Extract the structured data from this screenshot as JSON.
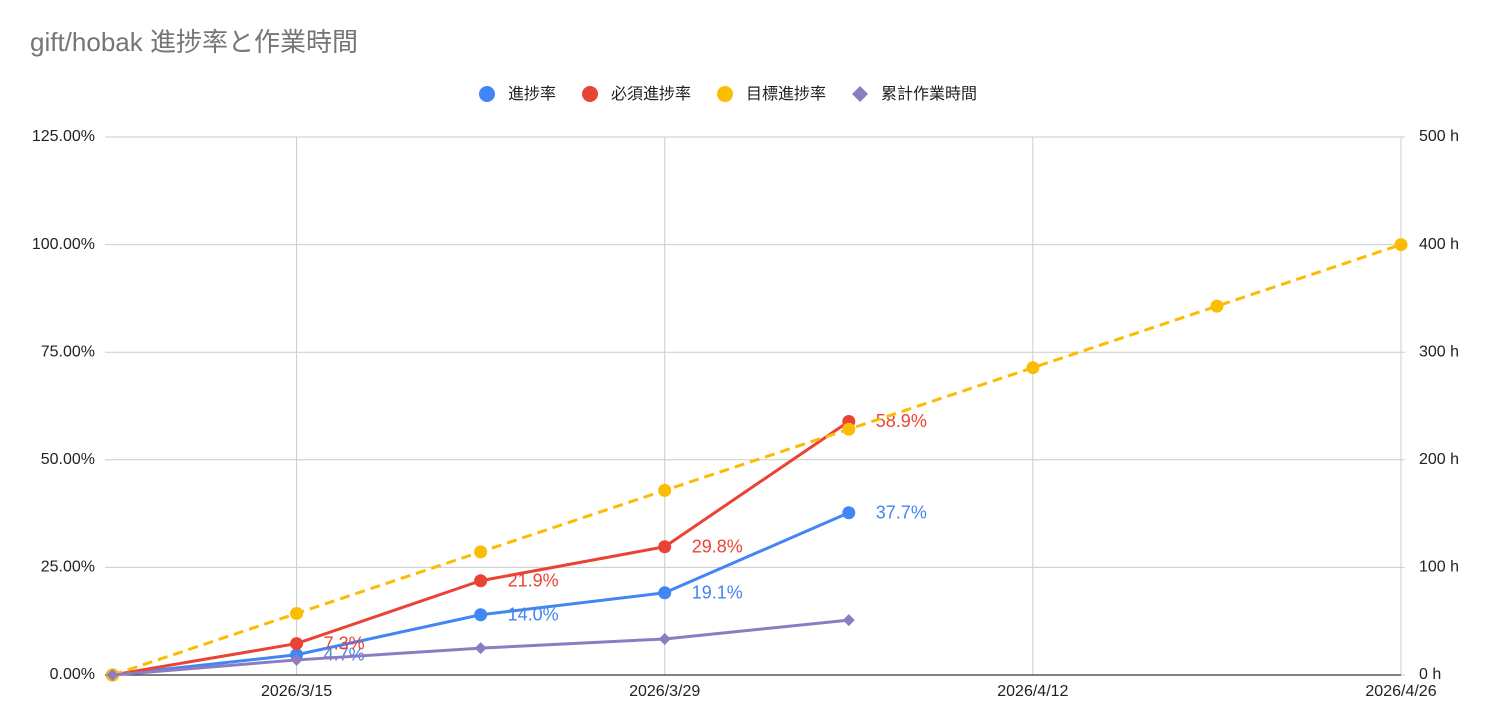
{
  "chart_data": {
    "type": "line",
    "title": "gift/hobak 進捗率と作業時間",
    "x": [
      "2026/3/8",
      "2026/3/15",
      "2026/3/22",
      "2026/3/29",
      "2026/4/5",
      "2026/4/12",
      "2026/4/19",
      "2026/4/26"
    ],
    "xlim": [
      "2026/3/8",
      "2026/4/26"
    ],
    "xticks": [
      "2026/3/15",
      "2026/3/29",
      "2026/4/12",
      "2026/4/26"
    ],
    "ylim": [
      0,
      125
    ],
    "yticks": [
      {
        "value": 0,
        "label": "0.00%"
      },
      {
        "value": 25,
        "label": "25.00%"
      },
      {
        "value": 50,
        "label": "50.00%"
      },
      {
        "value": 75,
        "label": "75.00%"
      },
      {
        "value": 100,
        "label": "100.00%"
      },
      {
        "value": 125,
        "label": "125.00%"
      }
    ],
    "y2lim": [
      0,
      500
    ],
    "y2ticks": [
      {
        "value": 0,
        "label": "0 h"
      },
      {
        "value": 100,
        "label": "100 h"
      },
      {
        "value": 200,
        "label": "200 h"
      },
      {
        "value": 300,
        "label": "300 h"
      },
      {
        "value": 400,
        "label": "400 h"
      },
      {
        "value": 500,
        "label": "500 h"
      }
    ],
    "grid": true,
    "legend": "top",
    "series": [
      {
        "name": "進捗率",
        "color": "#4285f4",
        "marker": "circle",
        "values": [
          0,
          4.7,
          14.0,
          19.1,
          37.7,
          null,
          null,
          null
        ],
        "value_labels": [
          null,
          "4.7%",
          "14.0%",
          "19.1%",
          "37.7%",
          null,
          null,
          null
        ]
      },
      {
        "name": "必須進捗率",
        "color": "#ea4335",
        "marker": "circle",
        "values": [
          0,
          7.3,
          21.9,
          29.8,
          58.9,
          null,
          null,
          null
        ],
        "value_labels": [
          null,
          "7.3%",
          "21.9%",
          "29.8%",
          "58.9%",
          null,
          null,
          null
        ]
      },
      {
        "name": "目標進捗率",
        "color": "#fbbc04",
        "marker": "circle",
        "dashed": true,
        "values": [
          0,
          14.3,
          28.6,
          42.9,
          57.1,
          71.4,
          85.7,
          100
        ]
      },
      {
        "name": "累計作業時間",
        "color": "#8e7cc3",
        "marker": "diamond",
        "axis": "y2",
        "values": [
          0,
          14,
          25,
          33.5,
          51,
          null,
          null,
          null
        ]
      }
    ]
  }
}
